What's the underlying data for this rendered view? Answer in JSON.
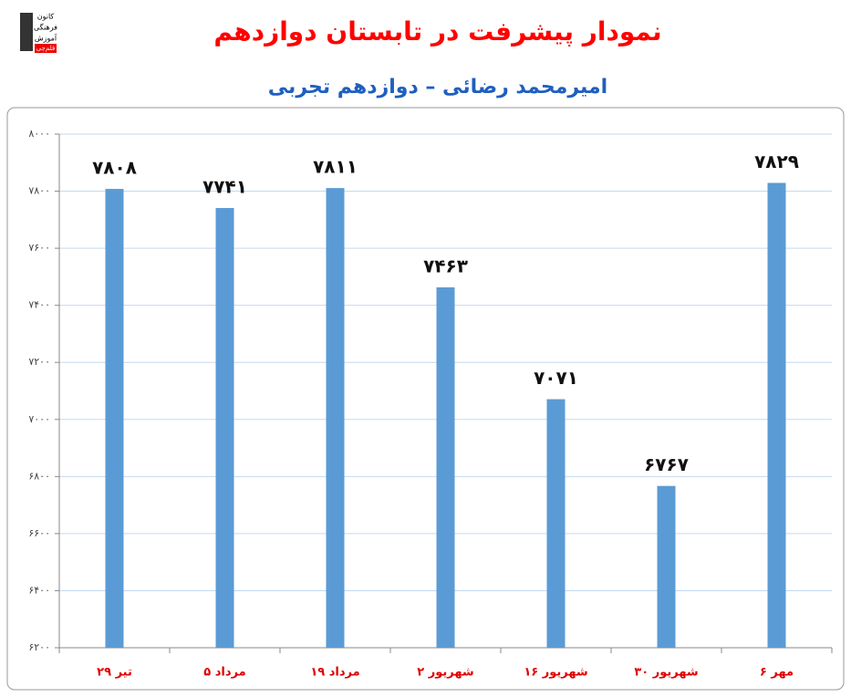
{
  "logo": {
    "lines": [
      "کانون",
      "فرهنگی",
      "آموزش",
      "قلم‌چی"
    ]
  },
  "chart_data": {
    "type": "bar",
    "title": "نمودار پیشرفت در تابستان دوازدهم",
    "subtitle": "امیرمحمد رضائی – دوازدهم تجربی",
    "categories": [
      "۲۹ تیر",
      "۵ مرداد",
      "۱۹ مرداد",
      "۲ شهریور",
      "۱۶ شهریور",
      "۳۰ شهریور",
      "۶ مهر"
    ],
    "values": [
      7808,
      7741,
      7811,
      7463,
      7071,
      6767,
      7829
    ],
    "value_labels": [
      "۷۸۰۸",
      "۷۷۴۱",
      "۷۸۱۱",
      "۷۴۶۳",
      "۷۰۷۱",
      "۶۷۶۷",
      "۷۸۲۹"
    ],
    "color": "#5b9bd5",
    "ylim": [
      6200,
      8000
    ],
    "yticks": [
      {
        "value": 6200,
        "label": "۶۲۰۰"
      },
      {
        "value": 6400,
        "label": "۶۴۰۰"
      },
      {
        "value": 6600,
        "label": "۶۶۰۰"
      },
      {
        "value": 6800,
        "label": "۶۸۰۰"
      },
      {
        "value": 7000,
        "label": "۷۰۰۰"
      },
      {
        "value": 7200,
        "label": "۷۲۰۰"
      },
      {
        "value": 7400,
        "label": "۷۴۰۰"
      },
      {
        "value": 7600,
        "label": "۷۶۰۰"
      },
      {
        "value": 7800,
        "label": "۷۸۰۰"
      },
      {
        "value": 8000,
        "label": "۸۰۰۰"
      }
    ],
    "grid": true
  }
}
